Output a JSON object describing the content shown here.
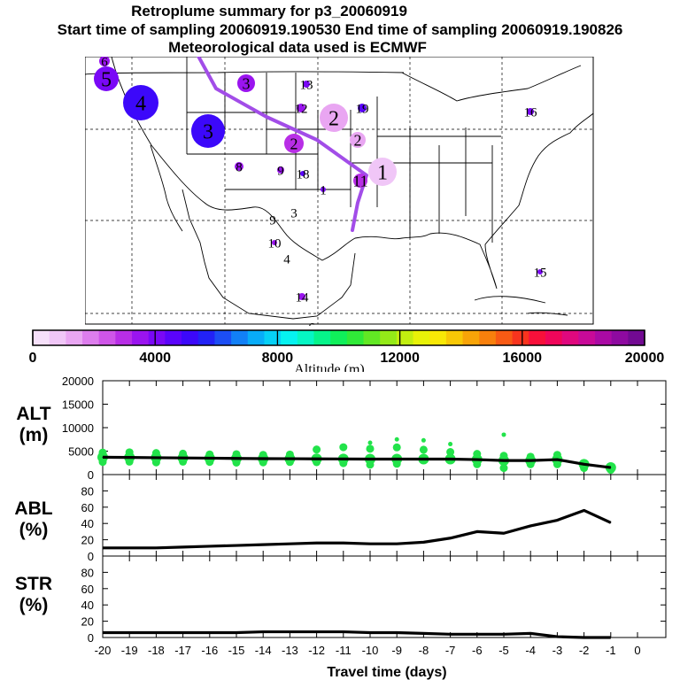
{
  "header": {
    "title": "Retroplume summary for p3_20060919",
    "sampling": "Start time of sampling 20060919.190530     End time of sampling 20060919.190826",
    "met": "Meteorological data used is ECMWF"
  },
  "colors": {
    "path": "#a24de8",
    "dots": "#22e34a",
    "line": "#000000",
    "scale": [
      "#f6e0fa",
      "#f0c6f7",
      "#e9a6f2",
      "#dd7ded",
      "#cf55e8",
      "#b82ee6",
      "#9a14ef",
      "#7a08f6",
      "#5a04fb",
      "#3c08fa",
      "#2222f6",
      "#1c4ef4",
      "#1280f6",
      "#08acf8",
      "#06d0f6",
      "#06f2f0",
      "#06f6c4",
      "#06f48a",
      "#10ef5a",
      "#30ea38",
      "#62e824",
      "#94ea18",
      "#c2ee10",
      "#e8f208",
      "#f8e806",
      "#f8c806",
      "#f8a408",
      "#f8800c",
      "#f85a14",
      "#f8341e",
      "#f8103a",
      "#f0065a",
      "#e0087e",
      "#c80a98",
      "#aa0aa4",
      "#8e0aa0",
      "#720a92"
    ]
  },
  "map": {
    "clusters": [
      {
        "label": "1",
        "size": 16,
        "color": "#f0c6f7"
      },
      {
        "label": "2",
        "size": 16,
        "color": "#e9a6f2"
      },
      {
        "label": "2",
        "size": 9,
        "color": "#e9a6f2"
      },
      {
        "label": "2",
        "size": 11,
        "color": "#b82ee6"
      },
      {
        "label": "3",
        "size": 19,
        "color": "#3c08fa"
      },
      {
        "label": "3",
        "size": 10,
        "color": "#9a14ef"
      },
      {
        "label": "4",
        "size": 20,
        "color": "#3c08fa"
      },
      {
        "label": "5",
        "size": 14,
        "color": "#7a08f6"
      },
      {
        "label": "6",
        "size": 6,
        "color": "#9a14ef"
      },
      {
        "label": "8",
        "size": 5,
        "color": "#9a14ef"
      },
      {
        "label": "9",
        "size": 4,
        "color": "#9a14ef"
      },
      {
        "label": "10",
        "size": 3,
        "color": "#9a14ef"
      },
      {
        "label": "11",
        "size": 8,
        "color": "#b82ee6"
      },
      {
        "label": "12",
        "size": 5,
        "color": "#9a14ef"
      },
      {
        "label": "13",
        "size": 4,
        "color": "#7a08f6"
      },
      {
        "label": "14",
        "size": 4,
        "color": "#9a14ef"
      },
      {
        "label": "15",
        "size": 3,
        "color": "#7a08f6"
      },
      {
        "label": "16",
        "size": 4,
        "color": "#7a08f6"
      },
      {
        "label": "18",
        "size": 3,
        "color": "#5a04fb"
      },
      {
        "label": "19",
        "size": 5,
        "color": "#5a04fb"
      },
      {
        "label": "1",
        "size": 3,
        "color": "#7a08f6"
      },
      {
        "label": "4",
        "size": 0,
        "color": "#9a14ef"
      },
      {
        "label": "3",
        "size": 0,
        "color": "#9a14ef"
      },
      {
        "label": "9",
        "size": 0,
        "color": "#9a14ef"
      },
      {
        "label": "6",
        "size": 0,
        "color": "#9a14ef"
      }
    ]
  },
  "colorbar": {
    "min": 0,
    "max": 20000,
    "ticks": [
      "0",
      "4000",
      "8000",
      "12000",
      "16000",
      "20000"
    ],
    "label": "Altitude (m)"
  },
  "chart_data": [
    {
      "type": "line",
      "title": "ALT (m)",
      "ylabel": "ALT (m)",
      "xlabel": "Travel time (days)",
      "xlim": [
        -20,
        0
      ],
      "ylim": [
        0,
        20000
      ],
      "yticks": [
        "0",
        "5000",
        "10000",
        "15000",
        "20000"
      ],
      "x": [
        -20,
        -19,
        -18,
        -17,
        -16,
        -15,
        -14,
        -13,
        -12,
        -11,
        -10,
        -9,
        -8,
        -7,
        -6,
        -5,
        -4,
        -3,
        -2,
        -1
      ],
      "values": [
        3700,
        3650,
        3600,
        3550,
        3500,
        3450,
        3400,
        3380,
        3350,
        3330,
        3300,
        3300,
        3300,
        3300,
        3200,
        3000,
        3000,
        3200,
        2200,
        1500
      ],
      "scatter_offsets": [
        [
          0,
          1000,
          -1000
        ],
        [
          0,
          1100,
          -900
        ],
        [
          0,
          1000,
          -1000
        ],
        [
          0,
          900,
          -800
        ],
        [
          0,
          800,
          -800
        ],
        [
          0,
          900,
          -900
        ],
        [
          0,
          800,
          -800
        ],
        [
          0,
          900,
          -700
        ],
        [
          0,
          2000,
          -700
        ],
        [
          0,
          2500,
          -900
        ],
        [
          0,
          2200,
          3500,
          -1200
        ],
        [
          0,
          2500,
          4200,
          -1000
        ],
        [
          0,
          2000,
          4000
        ],
        [
          0,
          1500,
          3200
        ],
        [
          0,
          1200,
          -1000
        ],
        [
          0,
          1000,
          -1600,
          5500
        ],
        [
          0,
          800,
          -800
        ],
        [
          0,
          1000,
          -1000
        ],
        [
          0,
          -800
        ],
        [
          0,
          -500
        ]
      ]
    },
    {
      "type": "line",
      "title": "ABL (%)",
      "ylabel": "ABL (%)",
      "xlim": [
        -20,
        0
      ],
      "ylim": [
        0,
        100
      ],
      "yticks": [
        "0",
        "20",
        "40",
        "60",
        "80"
      ],
      "x": [
        -20,
        -19,
        -18,
        -17,
        -16,
        -15,
        -14,
        -13,
        -12,
        -11,
        -10,
        -9,
        -8,
        -7,
        -6,
        -5,
        -4,
        -3,
        -2,
        -1
      ],
      "values": [
        10,
        10,
        10,
        11,
        12,
        13,
        14,
        15,
        16,
        16,
        15,
        15,
        17,
        22,
        30,
        28,
        37,
        44,
        56,
        41
      ]
    },
    {
      "type": "line",
      "title": "STR (%)",
      "ylabel": "STR (%)",
      "xlabel": "Travel time (days)",
      "xlim": [
        -20,
        0
      ],
      "ylim": [
        0,
        100
      ],
      "yticks": [
        "0",
        "20",
        "40",
        "60",
        "80"
      ],
      "xticks": [
        "-20",
        "-19",
        "-18",
        "-17",
        "-16",
        "-15",
        "-14",
        "-13",
        "-12",
        "-11",
        "-10",
        "-9",
        "-8",
        "-7",
        "-6",
        "-5",
        "-4",
        "-3",
        "-2",
        "-1",
        "0"
      ],
      "x": [
        -20,
        -19,
        -18,
        -17,
        -16,
        -15,
        -14,
        -13,
        -12,
        -11,
        -10,
        -9,
        -8,
        -7,
        -6,
        -5,
        -4,
        -3,
        -2,
        -1
      ],
      "values": [
        6,
        6,
        6,
        6,
        6,
        6,
        7,
        7,
        7,
        7,
        6,
        6,
        5,
        4,
        4,
        4,
        5,
        1,
        0,
        0
      ]
    }
  ]
}
